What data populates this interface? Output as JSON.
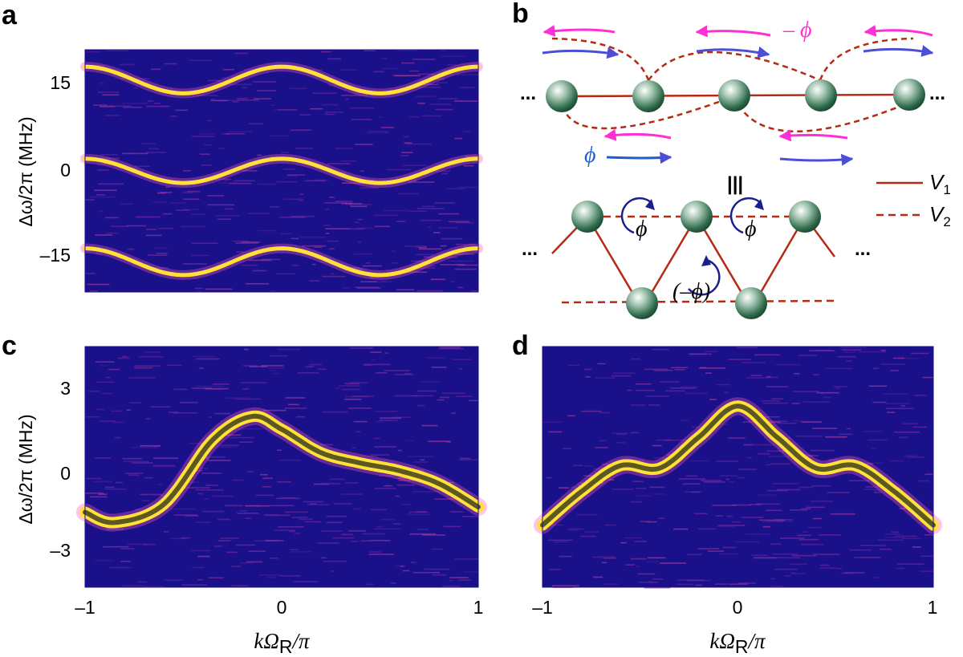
{
  "panels": {
    "a": {
      "label": "a",
      "ylabel": "Δω/2π (MHz)",
      "yticks": [
        "15",
        "0",
        "–15"
      ]
    },
    "b": {
      "label": "b",
      "dots": "...",
      "equiv": "|||",
      "phi": "ϕ",
      "minus_phi": "– ϕ",
      "paren_phi": "(–ϕ)",
      "legend": [
        {
          "name": "V",
          "sub": "1",
          "style": "solid"
        },
        {
          "name": "V",
          "sub": "2",
          "style": "dashed"
        }
      ]
    },
    "c": {
      "label": "c",
      "ylabel": "Δω/2π (MHz)",
      "yticks": [
        "3",
        "0",
        "–3"
      ],
      "xticks": [
        "–1",
        "0",
        "1"
      ],
      "xlabel_k": "k",
      "xlabel_omega": "Ω",
      "xlabel_sub": "R",
      "xlabel_rest": "/π"
    },
    "d": {
      "label": "d",
      "xticks": [
        "–1",
        "0",
        "1"
      ],
      "xlabel_k": "k",
      "xlabel_omega": "Ω",
      "xlabel_sub": "R",
      "xlabel_rest": "/π"
    }
  },
  "colors": {
    "heatmap_bg": "#1a118a",
    "band": "#ffe13a",
    "band_glow": "#ff5ab4",
    "fit": "#4a4a1e",
    "coupling": "#b52a13",
    "arrow_pink": "#ff2fd6",
    "arrow_blue": "#4c4fd6",
    "sphere": "#2e6b4b"
  },
  "chart_data": [
    {
      "panel": "a",
      "type": "heatmap",
      "xlim": [
        -1,
        1
      ],
      "ylim": [
        -20,
        20
      ],
      "bands": [
        {
          "offset": 15,
          "amplitude": 2.2
        },
        {
          "offset": 0,
          "amplitude": 2.0
        },
        {
          "offset": -15,
          "amplitude": 2.2
        }
      ]
    },
    {
      "panel": "c",
      "type": "heatmap",
      "xlim": [
        -1,
        1
      ],
      "ylim": [
        -4.5,
        4.8
      ],
      "curve": {
        "x": [
          -1.0,
          -0.85,
          -0.6,
          -0.35,
          -0.15,
          0.0,
          0.2,
          0.4,
          0.6,
          0.8,
          1.0
        ],
        "y": [
          -1.6,
          -2.0,
          -1.3,
          1.2,
          2.1,
          1.6,
          0.7,
          0.3,
          0.0,
          -0.5,
          -1.4
        ]
      }
    },
    {
      "panel": "d",
      "type": "heatmap",
      "xlim": [
        -1,
        1
      ],
      "ylim": [
        -4.5,
        4.8
      ],
      "curve": {
        "x": [
          -1.0,
          -0.8,
          -0.6,
          -0.4,
          -0.2,
          0.0,
          0.2,
          0.4,
          0.6,
          0.8,
          1.0
        ],
        "y": [
          -2.1,
          -0.8,
          0.2,
          0.1,
          1.3,
          2.5,
          1.3,
          0.1,
          0.2,
          -0.8,
          -2.1
        ]
      }
    }
  ]
}
